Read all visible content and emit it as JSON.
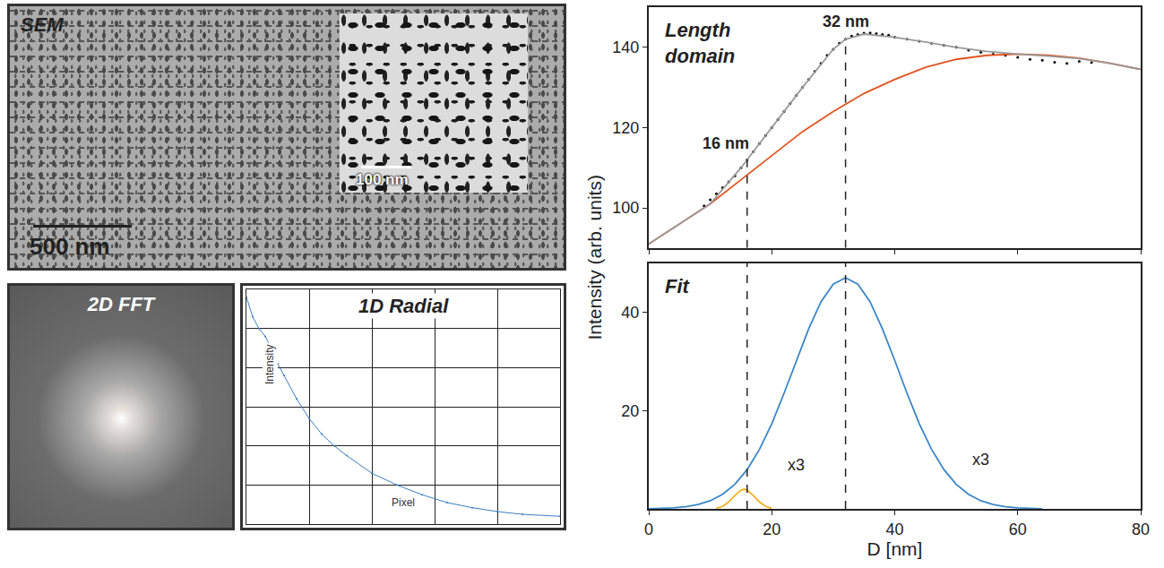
{
  "images": [
    {
      "title": "SEM",
      "scale_bar": "500 nm",
      "inset_scale_bar": "100 nm"
    },
    {
      "title": "2D FFT"
    }
  ],
  "chart_data": [
    {
      "type": "line",
      "title": "1D Radial",
      "x_label": "Pixel",
      "y_label": "Intensity",
      "x": [
        0,
        5,
        10,
        15,
        20,
        25,
        30,
        40,
        50,
        60,
        70,
        80,
        100,
        120,
        140,
        160,
        180,
        200,
        220,
        250
      ],
      "values": [
        5.8,
        5.3,
        5.0,
        4.8,
        4.5,
        4.1,
        3.8,
        3.2,
        2.7,
        2.3,
        2.0,
        1.75,
        1.3,
        1.0,
        0.75,
        0.55,
        0.42,
        0.32,
        0.25,
        0.2
      ],
      "color": "#3b7ec0",
      "marker": "circle",
      "xlim": [
        0,
        250
      ],
      "xticks": [
        50,
        100,
        150,
        200
      ],
      "ylim": [
        0,
        6
      ],
      "yticks": [
        1,
        2,
        3,
        4,
        5
      ],
      "grid": true,
      "tick_labels": false
    },
    {
      "type": "scatter",
      "title": "Length domain",
      "y_label": "Intensity (arb. units)",
      "xlim": [
        0,
        80
      ],
      "xticks": [
        0,
        20,
        40,
        60,
        80
      ],
      "ylim": [
        90,
        150
      ],
      "yticks": [
        100,
        120,
        140
      ],
      "tick_labels": "y",
      "series": [
        {
          "type": "scatter",
          "marker": "circle",
          "color": "#000000",
          "x": [
            9,
            10,
            11,
            12,
            13,
            14,
            15,
            16,
            17,
            18,
            19,
            20,
            21,
            22,
            23,
            24,
            25,
            26,
            27,
            28,
            29,
            30,
            31,
            32,
            33,
            34,
            35,
            36,
            37,
            38,
            39,
            40,
            42,
            44,
            46,
            48,
            50,
            52,
            54,
            56,
            58,
            60,
            62,
            64,
            66,
            68,
            70,
            72
          ],
          "values": [
            100.5,
            102,
            103.5,
            105,
            106.5,
            108,
            110,
            112,
            114,
            116,
            118,
            120,
            122,
            124,
            126,
            128,
            130,
            132,
            134,
            136,
            138,
            139.5,
            141,
            142,
            142.8,
            143.2,
            143.5,
            143.6,
            143.4,
            143.2,
            143,
            142.5,
            142,
            141.5,
            141,
            140.5,
            140,
            139.3,
            138.8,
            138.3,
            138,
            137.5,
            137,
            136.8,
            136.3,
            136,
            136.5,
            136.2
          ]
        },
        {
          "type": "line",
          "line_style": "solid",
          "color": "#e0541e",
          "x": [
            0,
            5,
            10,
            15,
            20,
            25,
            30,
            35,
            40,
            45,
            50,
            55,
            60,
            65,
            70,
            75,
            80
          ],
          "values": [
            91,
            96,
            101,
            107,
            113,
            119,
            124,
            128.5,
            132,
            135,
            137,
            138,
            138.3,
            138,
            137.3,
            136,
            134.5
          ]
        },
        {
          "type": "line",
          "line_style": "solid",
          "color": "#999999",
          "x": [
            0,
            5,
            10,
            15,
            20,
            25,
            30,
            32,
            35,
            40,
            45,
            50,
            55,
            60,
            65,
            70,
            75,
            80
          ],
          "values": [
            91,
            96,
            101,
            110,
            120,
            130,
            139.5,
            142,
            143.3,
            142.5,
            141.3,
            140,
            139,
            138.3,
            137.8,
            137.2,
            136,
            134.5
          ]
        }
      ],
      "markers": [
        {
          "x": 16,
          "y": 112,
          "label": "16 nm"
        },
        {
          "x": 32,
          "y": 142,
          "label": "32 nm"
        }
      ]
    },
    {
      "type": "line",
      "title": "Fit",
      "x_label": "D [nm]",
      "xlim": [
        0,
        80
      ],
      "xticks": [
        0,
        20,
        40,
        60,
        80
      ],
      "ylim": [
        0,
        50
      ],
      "yticks": [
        20,
        40
      ],
      "series": [
        {
          "type": "line",
          "line_style": "solid",
          "color": "#3a86c8",
          "x": [
            0,
            2,
            4,
            6,
            8,
            10,
            12,
            14,
            16,
            18,
            20,
            22,
            24,
            26,
            28,
            30,
            32,
            34,
            36,
            38,
            40,
            42,
            44,
            46,
            48,
            50,
            52,
            54,
            56,
            58,
            60,
            62,
            64
          ],
          "values": [
            0.04,
            0.09,
            0.21,
            0.44,
            0.87,
            1.65,
            2.95,
            4.99,
            7.99,
            12.1,
            17.3,
            23.5,
            30.2,
            36.6,
            42.1,
            45.7,
            47,
            45.7,
            42.1,
            36.6,
            30.2,
            23.5,
            17.3,
            12.1,
            7.99,
            4.99,
            2.95,
            1.65,
            0.87,
            0.44,
            0.21,
            0.09,
            0.04
          ]
        },
        {
          "type": "line",
          "line_style": "solid",
          "color": "#f0b020",
          "x": [
            11,
            12,
            13,
            14,
            15,
            15.5,
            16,
            17,
            18,
            19,
            20
          ],
          "values": [
            0.1,
            0.5,
            1.4,
            2.7,
            3.8,
            4,
            3.8,
            2.7,
            1.4,
            0.5,
            0.1
          ]
        }
      ],
      "annotations": [
        {
          "x": 24,
          "y": 9,
          "text": "x3"
        },
        {
          "x": 54,
          "y": 10,
          "text": "x3"
        }
      ]
    }
  ]
}
